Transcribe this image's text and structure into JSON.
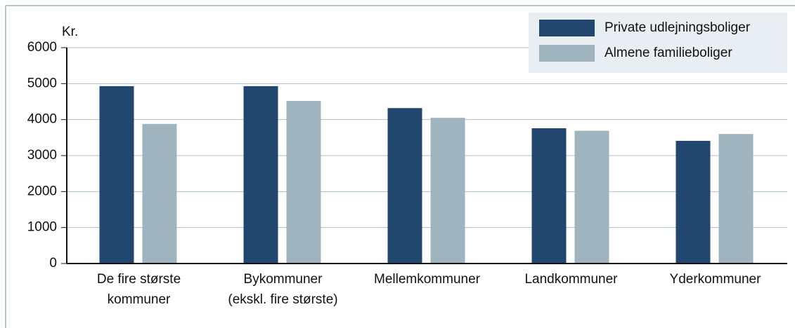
{
  "chart_data": {
    "type": "bar",
    "y_label": "Kr.",
    "categories": [
      [
        "De fire største",
        "kommuner"
      ],
      [
        "Bykommuner",
        "(ekskl. fire største)"
      ],
      [
        "Mellemkommuner"
      ],
      [
        "Landkommuner"
      ],
      [
        "Yderkommuner"
      ]
    ],
    "series": [
      {
        "name": "Private udlejningsboliger",
        "color": "#21476f",
        "values": [
          4930,
          4930,
          4320,
          3760,
          3410
        ]
      },
      {
        "name": "Almene familieboliger",
        "color": "#9fb4bf",
        "values": [
          3880,
          4520,
          4050,
          3690,
          3600
        ]
      }
    ],
    "ylim": [
      0,
      6000
    ],
    "yticks": [
      0,
      1000,
      2000,
      3000,
      4000,
      5000,
      6000
    ],
    "grid": true,
    "legend": "upper right"
  }
}
